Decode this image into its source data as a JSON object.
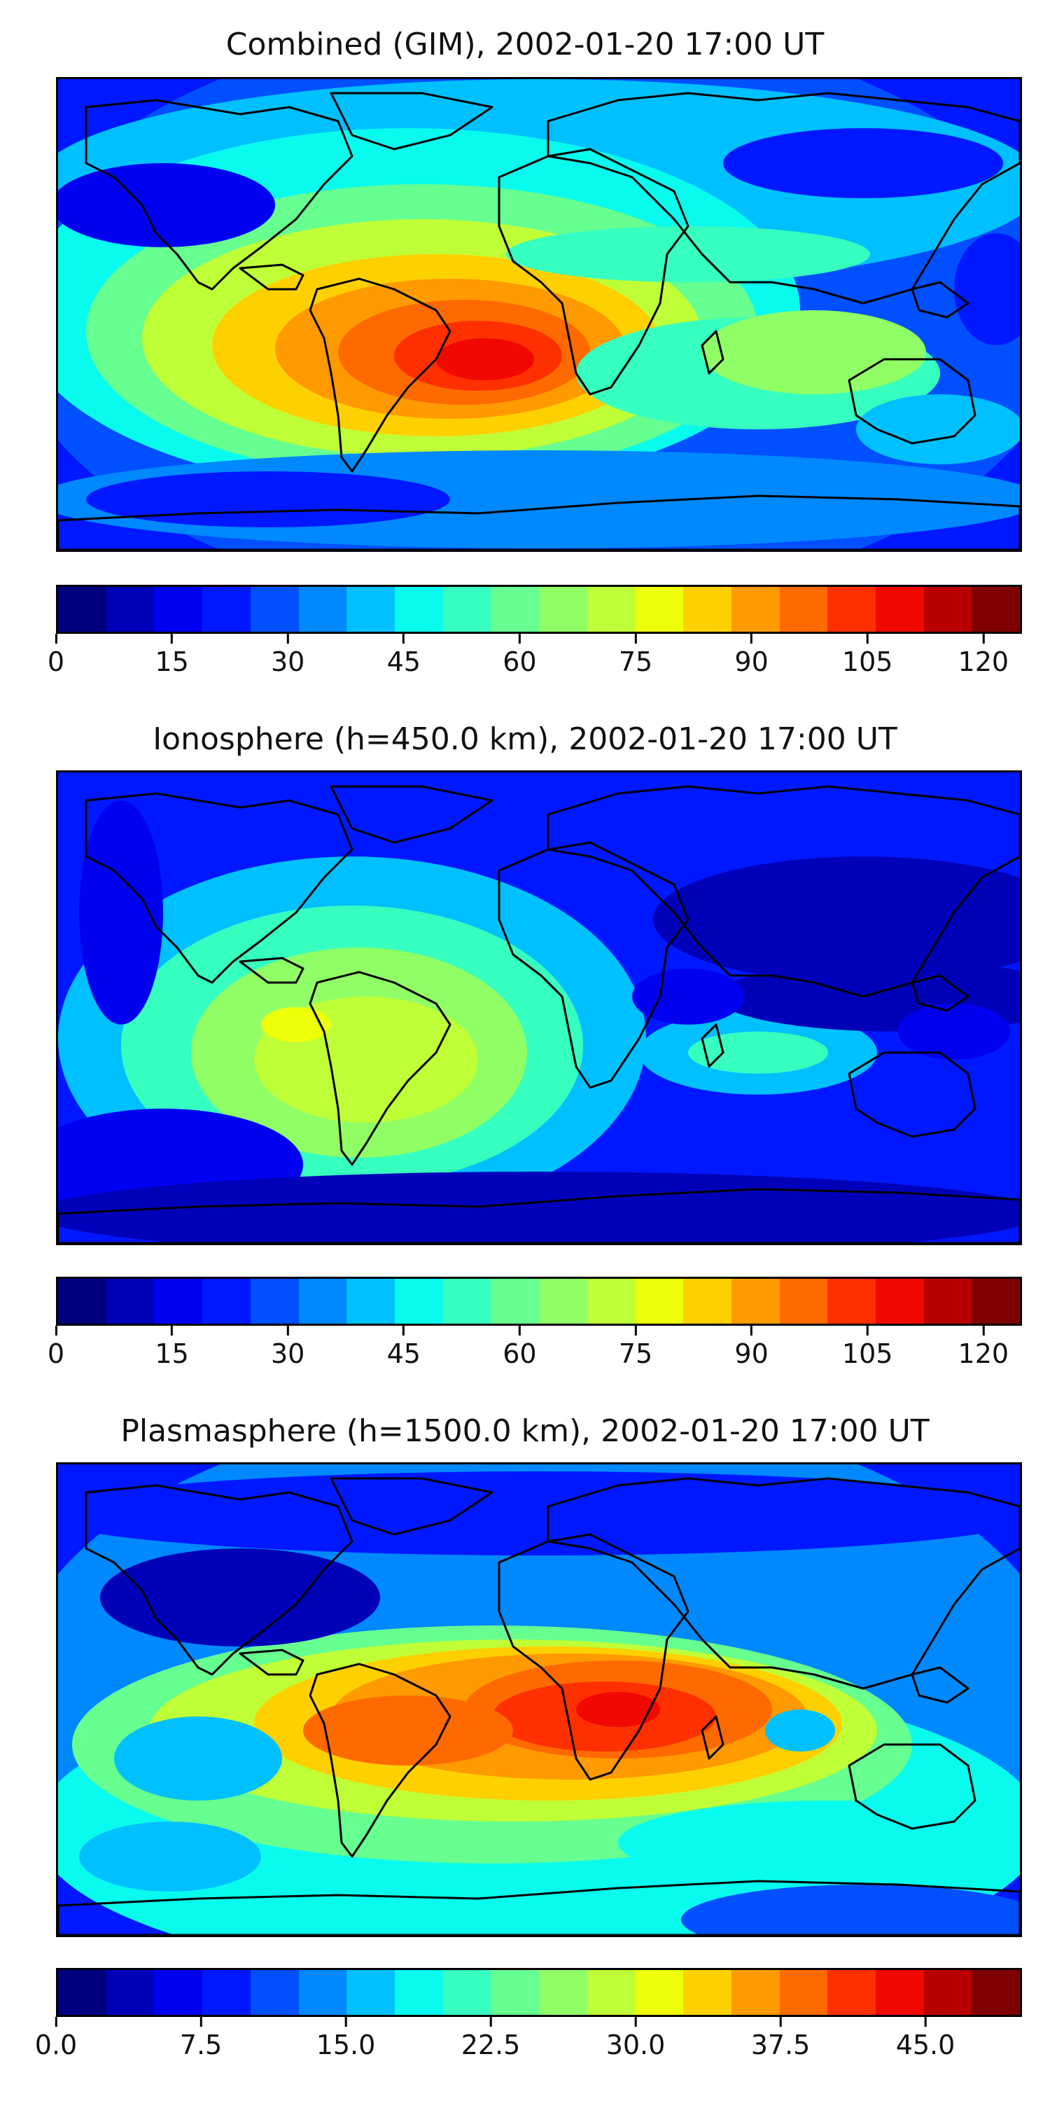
{
  "colors": [
    "#00007f",
    "#0000b8",
    "#0000f1",
    "#0018ff",
    "#0050ff",
    "#0088ff",
    "#00c0ff",
    "#09fbed",
    "#37ffbf",
    "#66ff90",
    "#90ff66",
    "#bfff37",
    "#edff09",
    "#ffd000",
    "#ff9a00",
    "#ff6a00",
    "#ff3000",
    "#f10800",
    "#b80000",
    "#7f0000"
  ],
  "continent_color": "#000000",
  "panels": [
    {
      "title": "Combined (GIM), 2002-01-20 17:00 UT",
      "colorbar": {
        "min": 0,
        "max": 125,
        "ticks": [
          "0",
          "15",
          "30",
          "45",
          "60",
          "75",
          "90",
          "105",
          "120"
        ],
        "tick_values": [
          0,
          15,
          30,
          45,
          60,
          75,
          90,
          105,
          120
        ]
      }
    },
    {
      "title": "Ionosphere  (h=450.0 km), 2002-01-20 17:00 UT",
      "colorbar": {
        "min": 0,
        "max": 125,
        "ticks": [
          "0",
          "15",
          "30",
          "45",
          "60",
          "75",
          "90",
          "105",
          "120"
        ],
        "tick_values": [
          0,
          15,
          30,
          45,
          60,
          75,
          90,
          105,
          120
        ]
      }
    },
    {
      "title": "Plasmasphere (h=1500.0 km), 2002-01-20 17:00 UT",
      "colorbar": {
        "min": 0,
        "max": 50,
        "ticks": [
          "0.0",
          "7.5",
          "15.0",
          "22.5",
          "30.0",
          "37.5",
          "45.0"
        ],
        "tick_values": [
          0,
          7.5,
          15,
          22.5,
          30,
          37.5,
          45
        ]
      }
    }
  ]
}
